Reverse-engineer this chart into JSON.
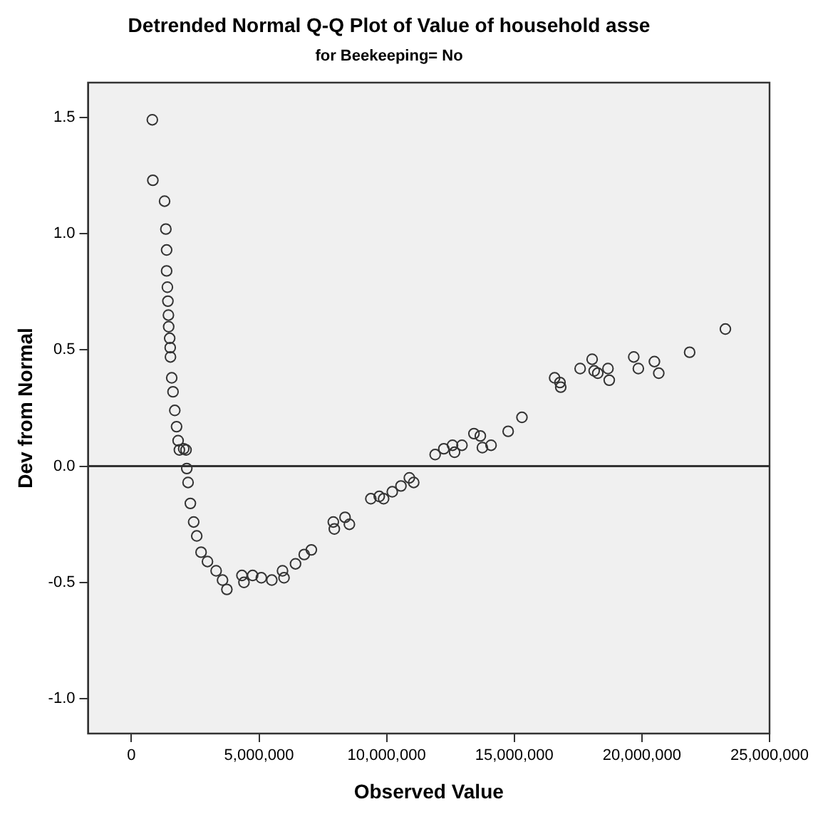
{
  "chart_data": {
    "type": "scatter",
    "title": "Detrended Normal Q-Q Plot of Value of household asse",
    "subtitle": "for Beekeeping= No",
    "xlabel": "Observed Value",
    "ylabel": "Dev from Normal",
    "x": [
      820000,
      840000,
      1300000,
      1350000,
      1380000,
      1380000,
      1410000,
      1430000,
      1450000,
      1460000,
      1500000,
      1520000,
      1530000,
      1580000,
      1630000,
      1700000,
      1770000,
      1830000,
      1880000,
      2050000,
      2140000,
      2170000,
      2220000,
      2310000,
      2440000,
      2560000,
      2730000,
      2980000,
      3320000,
      3570000,
      3740000,
      4330000,
      4410000,
      4750000,
      5090000,
      5500000,
      5920000,
      5980000,
      6430000,
      6770000,
      7050000,
      7910000,
      7950000,
      8370000,
      8540000,
      9380000,
      9710000,
      9880000,
      10220000,
      10560000,
      10890000,
      11060000,
      11900000,
      12240000,
      12580000,
      12660000,
      12950000,
      13420000,
      13670000,
      13750000,
      14090000,
      14760000,
      15300000,
      16580000,
      16790000,
      16820000,
      17580000,
      18050000,
      18130000,
      18270000,
      18670000,
      18720000,
      19680000,
      19860000,
      20490000,
      20660000,
      21870000,
      23270000
    ],
    "values": [
      1.49,
      1.23,
      1.14,
      1.02,
      0.93,
      0.84,
      0.77,
      0.71,
      0.65,
      0.6,
      0.55,
      0.51,
      0.47,
      0.38,
      0.32,
      0.24,
      0.17,
      0.11,
      0.07,
      0.075,
      0.07,
      -0.01,
      -0.07,
      -0.16,
      -0.24,
      -0.3,
      -0.37,
      -0.41,
      -0.45,
      -0.49,
      -0.53,
      -0.47,
      -0.5,
      -0.47,
      -0.48,
      -0.49,
      -0.45,
      -0.48,
      -0.42,
      -0.38,
      -0.36,
      -0.24,
      -0.27,
      -0.22,
      -0.25,
      -0.14,
      -0.13,
      -0.14,
      -0.11,
      -0.085,
      -0.05,
      -0.07,
      0.05,
      0.075,
      0.09,
      0.06,
      0.09,
      0.14,
      0.13,
      0.08,
      0.09,
      0.15,
      0.21,
      0.38,
      0.36,
      0.34,
      0.42,
      0.46,
      0.41,
      0.4,
      0.42,
      0.37,
      0.47,
      0.42,
      0.45,
      0.4,
      0.49,
      0.59
    ],
    "color": "#333333",
    "marker": "circle",
    "grid": false,
    "legend": false,
    "xlim": [
      -1700000,
      25000000
    ],
    "xticks": [
      {
        "value": 0,
        "label": "0"
      },
      {
        "value": 5000000,
        "label": "5,000,000"
      },
      {
        "value": 10000000,
        "label": "10,000,000"
      },
      {
        "value": 15000000,
        "label": "15,000,000"
      },
      {
        "value": 20000000,
        "label": "20,000,000"
      },
      {
        "value": 25000000,
        "label": "25,000,000"
      }
    ],
    "ylim": [
      -1.15,
      1.65
    ],
    "yticks": [
      {
        "value": -1,
        "label": "-1.0"
      },
      {
        "value": -0.5,
        "label": "-0.5"
      },
      {
        "value": 0,
        "label": "0.0"
      },
      {
        "value": 0.5,
        "label": "0.5"
      },
      {
        "value": 1,
        "label": "1.0"
      },
      {
        "value": 1.5,
        "label": "1.5"
      }
    ],
    "ref_lines": [
      {
        "axis": "y",
        "value": 0,
        "color": "#333333"
      }
    ]
  }
}
